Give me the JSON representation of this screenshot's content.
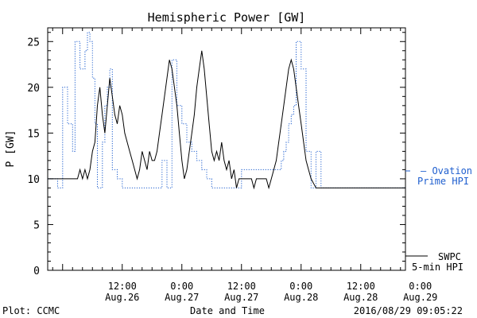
{
  "chart_data": {
    "type": "line",
    "title": "Hemispheric Power [GW]",
    "ylabel": "P [GW]",
    "xlabel": "Date and Time",
    "ylim": [
      0,
      26.5
    ],
    "yticks": [
      0,
      5,
      10,
      15,
      20,
      25
    ],
    "xlim_hours": [
      -3,
      69
    ],
    "x_unit": "hours from 2016-08-26 00:00",
    "xticks": [
      {
        "h": 12,
        "line1": "12:00",
        "line2": "Aug.26"
      },
      {
        "h": 24,
        "line1": "0:00",
        "line2": "Aug.27"
      },
      {
        "h": 36,
        "line1": "12:00",
        "line2": "Aug.27"
      },
      {
        "h": 48,
        "line1": "0:00",
        "line2": "Aug.28"
      },
      {
        "h": 60,
        "line1": "12:00",
        "line2": "Aug.28"
      },
      {
        "h": 72,
        "line1": "0:00",
        "line2": "Aug.29"
      }
    ],
    "series": [
      {
        "name": "SWPC 5-min HPI",
        "color": "#000000",
        "style": "solid",
        "points": [
          [
            -3,
            10
          ],
          [
            2.0,
            10
          ],
          [
            3.0,
            10
          ],
          [
            3.5,
            11
          ],
          [
            4.0,
            10
          ],
          [
            4.5,
            11
          ],
          [
            5.0,
            10
          ],
          [
            5.5,
            11
          ],
          [
            6.0,
            13
          ],
          [
            6.5,
            14
          ],
          [
            7.0,
            18
          ],
          [
            7.5,
            20
          ],
          [
            8.0,
            17
          ],
          [
            8.5,
            15
          ],
          [
            9.0,
            18
          ],
          [
            9.5,
            21
          ],
          [
            10.0,
            19
          ],
          [
            10.5,
            17
          ],
          [
            11.0,
            16
          ],
          [
            11.5,
            18
          ],
          [
            12.0,
            17
          ],
          [
            12.5,
            15
          ],
          [
            13.0,
            14
          ],
          [
            13.5,
            13
          ],
          [
            14.0,
            12
          ],
          [
            14.5,
            11
          ],
          [
            15.0,
            10
          ],
          [
            15.5,
            11
          ],
          [
            16.0,
            13
          ],
          [
            16.5,
            12
          ],
          [
            17.0,
            11
          ],
          [
            17.5,
            13
          ],
          [
            18.0,
            12
          ],
          [
            18.5,
            12
          ],
          [
            19.0,
            13
          ],
          [
            19.5,
            15
          ],
          [
            20.0,
            17
          ],
          [
            20.5,
            19
          ],
          [
            21.0,
            21
          ],
          [
            21.5,
            23
          ],
          [
            22.0,
            22
          ],
          [
            22.5,
            20
          ],
          [
            23.0,
            18
          ],
          [
            23.5,
            15
          ],
          [
            24.0,
            12
          ],
          [
            24.5,
            10
          ],
          [
            25.0,
            11
          ],
          [
            25.5,
            13
          ],
          [
            26.0,
            15
          ],
          [
            26.5,
            17
          ],
          [
            27.0,
            20
          ],
          [
            27.5,
            22
          ],
          [
            28.0,
            24
          ],
          [
            28.5,
            22
          ],
          [
            29.0,
            19
          ],
          [
            29.5,
            16
          ],
          [
            30.0,
            13
          ],
          [
            30.5,
            12
          ],
          [
            31.0,
            13
          ],
          [
            31.5,
            12
          ],
          [
            32.0,
            14
          ],
          [
            32.5,
            12
          ],
          [
            33.0,
            11
          ],
          [
            33.5,
            12
          ],
          [
            34.0,
            10
          ],
          [
            34.5,
            11
          ],
          [
            35.0,
            9
          ],
          [
            35.5,
            10
          ],
          [
            36.0,
            10
          ],
          [
            38.0,
            10
          ],
          [
            38.5,
            9
          ],
          [
            39.0,
            10
          ],
          [
            41.0,
            10
          ],
          [
            41.5,
            9
          ],
          [
            42.0,
            10
          ],
          [
            42.5,
            11
          ],
          [
            43.0,
            12
          ],
          [
            43.5,
            14
          ],
          [
            44.0,
            16
          ],
          [
            44.5,
            18
          ],
          [
            45.0,
            20
          ],
          [
            45.5,
            22
          ],
          [
            46.0,
            23
          ],
          [
            46.5,
            22
          ],
          [
            47.0,
            20
          ],
          [
            47.5,
            18
          ],
          [
            48.0,
            16
          ],
          [
            48.5,
            14
          ],
          [
            49.0,
            12
          ],
          [
            49.5,
            11
          ],
          [
            50.0,
            10
          ],
          [
            50.5,
            9.5
          ],
          [
            51.0,
            9
          ],
          [
            69.0,
            9
          ]
        ]
      },
      {
        "name": "Ovation Prime HPI",
        "color": "#1f5fcf",
        "style": "dotted",
        "points": [
          [
            -3,
            10
          ],
          [
            -1.0,
            10
          ],
          [
            -1.0,
            9
          ],
          [
            0.0,
            9
          ],
          [
            0.0,
            20
          ],
          [
            1.0,
            20
          ],
          [
            1.0,
            16
          ],
          [
            2.0,
            16
          ],
          [
            2.0,
            13
          ],
          [
            2.5,
            13
          ],
          [
            2.5,
            25
          ],
          [
            3.5,
            25
          ],
          [
            3.5,
            22
          ],
          [
            4.5,
            22
          ],
          [
            4.5,
            24
          ],
          [
            5.0,
            24
          ],
          [
            5.0,
            26
          ],
          [
            5.5,
            26
          ],
          [
            5.5,
            25
          ],
          [
            6.0,
            25
          ],
          [
            6.0,
            21
          ],
          [
            6.5,
            21
          ],
          [
            6.5,
            16
          ],
          [
            7.0,
            16
          ],
          [
            7.0,
            9
          ],
          [
            8.0,
            9
          ],
          [
            8.0,
            14
          ],
          [
            8.5,
            14
          ],
          [
            8.5,
            18
          ],
          [
            9.0,
            18
          ],
          [
            9.0,
            20
          ],
          [
            9.5,
            20
          ],
          [
            9.5,
            22
          ],
          [
            10.0,
            22
          ],
          [
            10.0,
            11
          ],
          [
            11.0,
            11
          ],
          [
            11.0,
            10
          ],
          [
            12.0,
            10
          ],
          [
            12.0,
            9
          ],
          [
            20.0,
            9
          ],
          [
            20.0,
            12
          ],
          [
            21.0,
            12
          ],
          [
            21.0,
            9
          ],
          [
            22.0,
            9
          ],
          [
            22.0,
            23
          ],
          [
            23.0,
            23
          ],
          [
            23.0,
            18
          ],
          [
            24.0,
            18
          ],
          [
            24.0,
            16
          ],
          [
            25.0,
            16
          ],
          [
            25.0,
            14
          ],
          [
            26.0,
            14
          ],
          [
            26.0,
            13
          ],
          [
            27.0,
            13
          ],
          [
            27.0,
            12
          ],
          [
            28.0,
            12
          ],
          [
            28.0,
            11
          ],
          [
            29.0,
            11
          ],
          [
            29.0,
            10
          ],
          [
            30.0,
            10
          ],
          [
            30.0,
            9
          ],
          [
            36.0,
            9
          ],
          [
            36.0,
            11
          ],
          [
            44.0,
            11
          ],
          [
            44.0,
            12
          ],
          [
            44.5,
            12
          ],
          [
            44.5,
            13
          ],
          [
            45.0,
            13
          ],
          [
            45.0,
            14
          ],
          [
            45.5,
            14
          ],
          [
            45.5,
            16
          ],
          [
            46.0,
            16
          ],
          [
            46.0,
            17
          ],
          [
            46.5,
            17
          ],
          [
            46.5,
            18
          ],
          [
            47.0,
            18
          ],
          [
            47.0,
            25
          ],
          [
            48.0,
            25
          ],
          [
            48.0,
            22
          ],
          [
            49.0,
            22
          ],
          [
            49.0,
            13
          ],
          [
            50.0,
            13
          ],
          [
            50.0,
            9
          ],
          [
            51.0,
            9
          ],
          [
            51.0,
            13
          ],
          [
            52.0,
            13
          ],
          [
            52.0,
            9
          ],
          [
            69.0,
            9
          ]
        ]
      }
    ],
    "legend": {
      "ovation_line1": "— Ovation",
      "ovation_line2": "Prime HPI",
      "swpc_line1": "SWPC",
      "swpc_line2": "5-min HPI"
    }
  },
  "footer": {
    "left": "Plot: CCMC",
    "right": "2016/08/29 09:05:22"
  }
}
